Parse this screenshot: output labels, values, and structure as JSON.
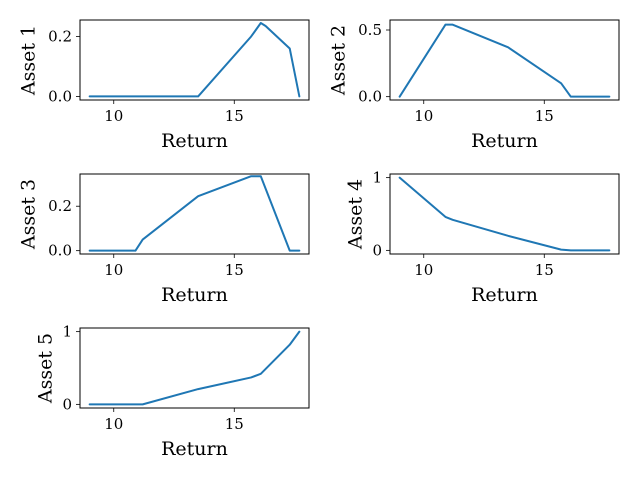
{
  "chart_data": [
    {
      "type": "line",
      "xlabel": "Return",
      "ylabel": "Asset 1",
      "xlim": [
        8.6,
        18.1
      ],
      "ylim": [
        -0.012,
        0.255
      ],
      "xticks": [
        10,
        15
      ],
      "yticks": [
        0.0,
        0.2
      ],
      "ytick_labels": [
        "0.0",
        "0.2"
      ],
      "series_color": "#1f77b4",
      "x": [
        9.0,
        11.0,
        13.5,
        15.7,
        16.1,
        16.3,
        17.3,
        17.7
      ],
      "y": [
        0.0,
        0.0,
        0.0,
        0.2,
        0.245,
        0.235,
        0.16,
        0.0
      ]
    },
    {
      "type": "line",
      "xlabel": "Return",
      "ylabel": "Asset 2",
      "xlim": [
        8.6,
        18.1
      ],
      "ylim": [
        -0.025,
        0.575
      ],
      "xticks": [
        10,
        15
      ],
      "yticks": [
        0.0,
        0.5
      ],
      "ytick_labels": [
        "0.0",
        "0.5"
      ],
      "series_color": "#1f77b4",
      "x": [
        9.0,
        10.9,
        11.2,
        13.5,
        15.7,
        16.1,
        17.3,
        17.7
      ],
      "y": [
        0.0,
        0.54,
        0.54,
        0.37,
        0.1,
        0.0,
        0.0,
        0.0
      ]
    },
    {
      "type": "line",
      "xlabel": "Return",
      "ylabel": "Asset 3",
      "xlim": [
        8.6,
        18.1
      ],
      "ylim": [
        -0.015,
        0.345
      ],
      "xticks": [
        10,
        15
      ],
      "yticks": [
        0.0,
        0.2
      ],
      "ytick_labels": [
        "0.0",
        "0.2"
      ],
      "series_color": "#1f77b4",
      "x": [
        9.0,
        10.9,
        11.2,
        13.5,
        15.7,
        16.1,
        17.3,
        17.7
      ],
      "y": [
        0.0,
        0.0,
        0.05,
        0.245,
        0.335,
        0.335,
        0.0,
        0.0
      ]
    },
    {
      "type": "line",
      "xlabel": "Return",
      "ylabel": "Asset 4",
      "xlim": [
        8.6,
        18.1
      ],
      "ylim": [
        -0.05,
        1.05
      ],
      "xticks": [
        10,
        15
      ],
      "yticks": [
        0,
        1
      ],
      "ytick_labels": [
        "0",
        "1"
      ],
      "series_color": "#1f77b4",
      "x": [
        9.0,
        10.9,
        11.2,
        13.5,
        15.7,
        16.1,
        17.3,
        17.7
      ],
      "y": [
        1.0,
        0.46,
        0.42,
        0.2,
        0.01,
        0.0,
        0.0,
        0.0
      ]
    },
    {
      "type": "line",
      "xlabel": "Return",
      "ylabel": "Asset 5",
      "xlim": [
        8.6,
        18.1
      ],
      "ylim": [
        -0.05,
        1.05
      ],
      "xticks": [
        10,
        15
      ],
      "yticks": [
        0,
        1
      ],
      "ytick_labels": [
        "0",
        "1"
      ],
      "series_color": "#1f77b4",
      "x": [
        9.0,
        10.9,
        11.2,
        13.5,
        15.7,
        16.1,
        17.3,
        17.7
      ],
      "y": [
        0.0,
        0.0,
        0.0,
        0.21,
        0.37,
        0.42,
        0.82,
        1.0
      ]
    }
  ]
}
